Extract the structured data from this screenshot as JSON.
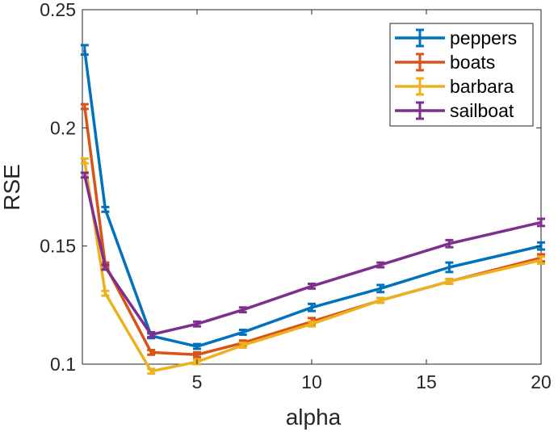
{
  "chart_data": {
    "type": "line",
    "title": "",
    "xlabel": "alpha",
    "ylabel": "RSE",
    "xlim": [
      0,
      20
    ],
    "ylim": [
      0.1,
      0.25
    ],
    "xticks": [
      5,
      10,
      15,
      20
    ],
    "xtick_labels": [
      "5",
      "10",
      "15",
      "20"
    ],
    "yticks": [
      0.1,
      0.15,
      0.2,
      0.25
    ],
    "ytick_labels": [
      "0.1",
      "0.15",
      "0.2",
      "0.25"
    ],
    "grid": false,
    "legend_position": "top-right",
    "x": [
      0.1,
      1,
      3,
      5,
      7,
      10,
      13,
      16,
      20
    ],
    "series": [
      {
        "name": "peppers",
        "color": "#0072BD",
        "values": [
          0.233,
          0.1655,
          0.112,
          0.1075,
          0.1135,
          0.124,
          0.132,
          0.141,
          0.15
        ],
        "errors": [
          0.002,
          0.001,
          0.001,
          0.001,
          0.001,
          0.0015,
          0.0015,
          0.002,
          0.0015
        ]
      },
      {
        "name": "boats",
        "color": "#D95319",
        "values": [
          0.209,
          0.142,
          0.105,
          0.104,
          0.109,
          0.118,
          0.127,
          0.135,
          0.145
        ],
        "errors": [
          0.001,
          0.001,
          0.001,
          0.001,
          0.001,
          0.0015,
          0.001,
          0.001,
          0.0015
        ]
      },
      {
        "name": "barbara",
        "color": "#EDB120",
        "values": [
          0.186,
          0.13,
          0.097,
          0.101,
          0.108,
          0.117,
          0.127,
          0.135,
          0.144
        ],
        "errors": [
          0.001,
          0.001,
          0.001,
          0.001,
          0.001,
          0.001,
          0.001,
          0.001,
          0.0015
        ]
      },
      {
        "name": "sailboat",
        "color": "#7E2F8E",
        "values": [
          0.18,
          0.141,
          0.1125,
          0.117,
          0.123,
          0.133,
          0.142,
          0.151,
          0.16
        ],
        "errors": [
          0.001,
          0.001,
          0.001,
          0.001,
          0.001,
          0.001,
          0.001,
          0.0015,
          0.0015
        ]
      }
    ]
  }
}
